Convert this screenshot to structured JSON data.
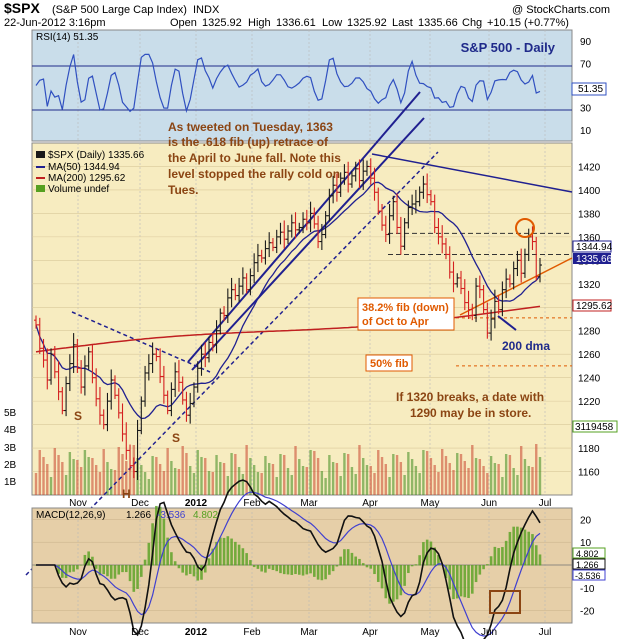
{
  "header": {
    "symbol": "$SPX",
    "name": "(S&P 500 Large Cap Index)",
    "exchange": "INDX",
    "copyright": "@ StockCharts.com",
    "date": "22-Jun-2012 3:16pm",
    "open_label": "Open",
    "open": "1325.92",
    "high_label": "High",
    "high": "1336.61",
    "low_label": "Low",
    "low": "1325.92",
    "last_label": "Last",
    "last": "1335.66",
    "chg_label": "Chg",
    "chg": "+10.15 (+0.77%)"
  },
  "colors": {
    "price_panel_bg": "#f7ecc0",
    "rsi_bg": "#c9ddea",
    "macd_bg": "#e6cfa8",
    "up_bar": "#1a1a1a",
    "down_bar": "#d42020",
    "ma50": "#202090",
    "ma200": "#c02020",
    "volume": "#56a020",
    "annotation": "#8b4513",
    "fib": "#e05a00",
    "trendline": "#202090"
  },
  "chart_data": [
    {
      "panel": "rsi",
      "type": "line",
      "legend": "RSI(14) 51.35",
      "title": "S&P 500 - Daily",
      "ylim": [
        0,
        100
      ],
      "yticks": [
        10,
        30,
        50,
        70,
        90
      ],
      "levels": [
        30,
        70
      ],
      "last_value_label": "51.35",
      "series": [
        {
          "values_by_month": {
            "Nov": 54,
            "Dec": 53,
            "2012": 58,
            "Feb": 62,
            "Mar": 60,
            "Apr": 45,
            "May": 36,
            "Jun": 40,
            "last": 51.35
          }
        }
      ]
    },
    {
      "panel": "price",
      "type": "ohlc",
      "legend": [
        {
          "label": "$SPX (Daily) 1335.66",
          "kind": "price"
        },
        {
          "label": "MA(50) 1344.94",
          "kind": "ma50"
        },
        {
          "label": "MA(200) 1295.62",
          "kind": "ma200"
        },
        {
          "label": "Volume undef",
          "kind": "volume"
        }
      ],
      "ylim": [
        1140,
        1440
      ],
      "yticks": [
        "1160",
        "1180",
        "1200",
        "1220",
        "1240",
        "1260",
        "1280",
        "1300",
        "1320",
        "1340",
        "1360",
        "1380",
        "1400",
        "1420"
      ],
      "volume_ticks": [
        "1B",
        "2B",
        "3B",
        "4B",
        "5B"
      ],
      "x_months": [
        "Nov",
        "Dec",
        "2012",
        "Feb",
        "Mar",
        "Apr",
        "May",
        "Jun",
        "Jul"
      ],
      "closes": [
        1285,
        1265,
        1255,
        1238,
        1260,
        1245,
        1228,
        1212,
        1235,
        1252,
        1268,
        1248,
        1232,
        1250,
        1262,
        1240,
        1222,
        1208,
        1200,
        1220,
        1238,
        1225,
        1210,
        1192,
        1178,
        1165,
        1160,
        1195,
        1220,
        1244,
        1252,
        1260,
        1258,
        1241,
        1225,
        1212,
        1230,
        1245,
        1236,
        1221,
        1208,
        1218,
        1232,
        1248,
        1260,
        1257,
        1270,
        1268,
        1280,
        1295,
        1293,
        1308,
        1315,
        1310,
        1318,
        1325,
        1315,
        1327,
        1338,
        1344,
        1342,
        1350,
        1355,
        1351,
        1360,
        1364,
        1358,
        1365,
        1372,
        1366,
        1368,
        1375,
        1372,
        1380,
        1371,
        1356,
        1362,
        1378,
        1395,
        1404,
        1398,
        1410,
        1415,
        1405,
        1412,
        1418,
        1408,
        1416,
        1420,
        1410,
        1398,
        1382,
        1370,
        1362,
        1378,
        1390,
        1368,
        1352,
        1372,
        1385,
        1388,
        1390,
        1398,
        1405,
        1396,
        1390,
        1368,
        1360,
        1354,
        1345,
        1330,
        1320,
        1325,
        1316,
        1304,
        1298,
        1293,
        1318,
        1315,
        1298,
        1278,
        1290,
        1305,
        1298,
        1315,
        1324,
        1320,
        1333,
        1340,
        1329,
        1345,
        1360,
        1356,
        1326,
        1336
      ],
      "ma50_label": "1344.94",
      "ma200_label": "1295.62",
      "last_label": "1335.66",
      "volume_label": "3119458",
      "annotations": [
        {
          "text": "As tweeted on Tuesday, 1363",
          "color": "brown"
        },
        {
          "text": "is the .618 fib (up) retrace of",
          "color": "brown"
        },
        {
          "text": "the April to June fall. Note this",
          "color": "brown"
        },
        {
          "text": "level stopped the rally cold on",
          "color": "brown"
        },
        {
          "text": "Tues.",
          "color": "brown"
        },
        {
          "text": "38.2% fib (down)",
          "color": "orange"
        },
        {
          "text": "of Oct to Apr",
          "color": "orange"
        },
        {
          "text": "50% fib",
          "color": "orange"
        },
        {
          "text": "200 dma",
          "color": "blue"
        },
        {
          "text": "If 1320 breaks, a date with",
          "color": "brown"
        },
        {
          "text": "1290 may be in store.",
          "color": "brown"
        }
      ],
      "pattern_labels": [
        "S",
        "S",
        "H"
      ]
    },
    {
      "panel": "macd",
      "type": "line",
      "legend_name": "MACD(12,26,9)",
      "macd": "1.266",
      "signal": "-3.536",
      "histogram": "4.802",
      "ylim": [
        -25,
        25
      ],
      "yticks": [
        "20",
        "10",
        "0",
        "-10",
        "-20"
      ]
    }
  ]
}
